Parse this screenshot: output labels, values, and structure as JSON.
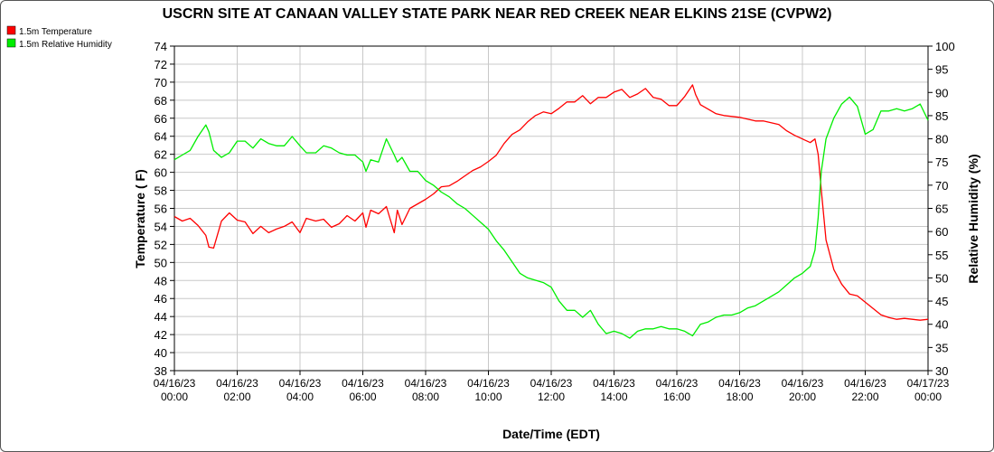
{
  "chart_data": {
    "type": "line",
    "title": "USCRN SITE AT CANAAN VALLEY STATE PARK NEAR RED CREEK NEAR ELKINS 21SE (CVPW2)",
    "xlabel": "Date/Time (EDT)",
    "ylabel_left": "Temperature ( F)",
    "ylabel_right": "Relative Humidity (%)",
    "xlim": [
      0,
      24
    ],
    "ylim_left": [
      38,
      74
    ],
    "ylim_right": [
      30,
      100
    ],
    "x_ticks": [
      {
        "x": 0,
        "date": "04/16/23",
        "time": "00:00"
      },
      {
        "x": 2,
        "date": "04/16/23",
        "time": "02:00"
      },
      {
        "x": 4,
        "date": "04/16/23",
        "time": "04:00"
      },
      {
        "x": 6,
        "date": "04/16/23",
        "time": "06:00"
      },
      {
        "x": 8,
        "date": "04/16/23",
        "time": "08:00"
      },
      {
        "x": 10,
        "date": "04/16/23",
        "time": "10:00"
      },
      {
        "x": 12,
        "date": "04/16/23",
        "time": "12:00"
      },
      {
        "x": 14,
        "date": "04/16/23",
        "time": "14:00"
      },
      {
        "x": 16,
        "date": "04/16/23",
        "time": "16:00"
      },
      {
        "x": 18,
        "date": "04/16/23",
        "time": "18:00"
      },
      {
        "x": 20,
        "date": "04/16/23",
        "time": "20:00"
      },
      {
        "x": 22,
        "date": "04/16/23",
        "time": "22:00"
      },
      {
        "x": 24,
        "date": "04/17/23",
        "time": "00:00"
      }
    ],
    "y_ticks_left": [
      38,
      40,
      42,
      44,
      46,
      48,
      50,
      52,
      54,
      56,
      58,
      60,
      62,
      64,
      66,
      68,
      70,
      72,
      74
    ],
    "y_ticks_right": [
      30,
      35,
      40,
      45,
      50,
      55,
      60,
      65,
      70,
      75,
      80,
      85,
      90,
      95,
      100
    ],
    "grid": true,
    "legend_position": "top-left",
    "series": [
      {
        "name": "1.5m Temperature",
        "color": "#ff0000",
        "axis": "left",
        "x": [
          0,
          0.25,
          0.5,
          0.75,
          1.0,
          1.1,
          1.25,
          1.5,
          1.75,
          2.0,
          2.25,
          2.5,
          2.75,
          3.0,
          3.25,
          3.5,
          3.75,
          4.0,
          4.2,
          4.5,
          4.75,
          5.0,
          5.25,
          5.5,
          5.75,
          6.0,
          6.1,
          6.25,
          6.5,
          6.75,
          7.0,
          7.1,
          7.25,
          7.5,
          7.75,
          8.0,
          8.25,
          8.5,
          8.75,
          9.0,
          9.25,
          9.5,
          9.75,
          10.0,
          10.25,
          10.5,
          10.75,
          11.0,
          11.25,
          11.5,
          11.75,
          12.0,
          12.25,
          12.5,
          12.75,
          13.0,
          13.25,
          13.5,
          13.75,
          14.0,
          14.25,
          14.5,
          14.75,
          15.0,
          15.25,
          15.5,
          15.75,
          16.0,
          16.25,
          16.5,
          16.6,
          16.75,
          17.0,
          17.25,
          17.5,
          17.75,
          18.0,
          18.25,
          18.5,
          18.75,
          19.0,
          19.25,
          19.5,
          19.75,
          20.0,
          20.25,
          20.4,
          20.5,
          20.6,
          20.75,
          21.0,
          21.25,
          21.5,
          21.75,
          22.0,
          22.25,
          22.5,
          22.75,
          23.0,
          23.25,
          23.5,
          23.75,
          24.0
        ],
        "values": [
          55.1,
          54.6,
          54.9,
          54.1,
          53.0,
          51.7,
          51.6,
          54.6,
          55.5,
          54.7,
          54.5,
          53.2,
          54.0,
          53.3,
          53.7,
          54.0,
          54.5,
          53.3,
          54.9,
          54.6,
          54.8,
          53.9,
          54.3,
          55.2,
          54.6,
          55.5,
          53.9,
          55.8,
          55.4,
          56.2,
          53.3,
          55.8,
          54.2,
          56.0,
          56.5,
          57.0,
          57.6,
          58.4,
          58.5,
          59.0,
          59.6,
          60.2,
          60.6,
          61.2,
          61.9,
          63.2,
          64.2,
          64.7,
          65.6,
          66.3,
          66.7,
          66.5,
          67.1,
          67.8,
          67.8,
          68.5,
          67.6,
          68.3,
          68.3,
          68.9,
          69.2,
          68.3,
          68.7,
          69.3,
          68.3,
          68.1,
          67.4,
          67.4,
          68.4,
          69.7,
          68.6,
          67.5,
          67.0,
          66.5,
          66.3,
          66.2,
          66.1,
          65.9,
          65.7,
          65.7,
          65.5,
          65.3,
          64.6,
          64.1,
          63.7,
          63.3,
          63.7,
          62.0,
          58.0,
          52.5,
          49.2,
          47.6,
          46.5,
          46.3,
          45.6,
          44.9,
          44.2,
          43.9,
          43.7,
          43.8,
          43.7,
          43.6,
          43.7
        ]
      },
      {
        "name": "1.5m Relative Humidity",
        "color": "#00ee00",
        "axis": "right",
        "x": [
          0,
          0.25,
          0.5,
          0.75,
          1.0,
          1.1,
          1.25,
          1.5,
          1.75,
          2.0,
          2.25,
          2.5,
          2.75,
          3.0,
          3.25,
          3.5,
          3.75,
          4.0,
          4.2,
          4.5,
          4.75,
          5.0,
          5.25,
          5.5,
          5.75,
          6.0,
          6.1,
          6.25,
          6.5,
          6.75,
          7.0,
          7.1,
          7.25,
          7.5,
          7.75,
          8.0,
          8.25,
          8.5,
          8.75,
          9.0,
          9.25,
          9.5,
          9.75,
          10.0,
          10.25,
          10.5,
          10.75,
          11.0,
          11.25,
          11.5,
          11.75,
          12.0,
          12.25,
          12.5,
          12.75,
          13.0,
          13.25,
          13.5,
          13.75,
          14.0,
          14.25,
          14.5,
          14.75,
          15.0,
          15.25,
          15.5,
          15.75,
          16.0,
          16.25,
          16.5,
          16.6,
          16.75,
          17.0,
          17.25,
          17.5,
          17.75,
          18.0,
          18.25,
          18.5,
          18.75,
          19.0,
          19.25,
          19.5,
          19.75,
          20.0,
          20.25,
          20.4,
          20.5,
          20.6,
          20.75,
          21.0,
          21.25,
          21.5,
          21.75,
          22.0,
          22.25,
          22.5,
          22.75,
          23.0,
          23.25,
          23.5,
          23.75,
          24.0
        ],
        "values": [
          75.5,
          76.5,
          77.5,
          80.5,
          83.0,
          81.5,
          77.5,
          76.0,
          77.0,
          79.5,
          79.5,
          78.0,
          80.0,
          79.0,
          78.5,
          78.5,
          80.5,
          78.5,
          77.0,
          77.0,
          78.5,
          78.0,
          77.0,
          76.5,
          76.5,
          75.0,
          73.0,
          75.5,
          75.0,
          80.0,
          76.5,
          75.0,
          76.0,
          73.0,
          73.0,
          71.0,
          70.0,
          68.5,
          67.5,
          66.0,
          65.0,
          63.5,
          62.0,
          60.5,
          58.0,
          56.0,
          53.5,
          51.0,
          50.0,
          49.5,
          49.0,
          48.0,
          45.0,
          43.0,
          43.0,
          41.5,
          43.0,
          40.0,
          38.0,
          38.5,
          38.0,
          37.0,
          38.5,
          39.0,
          39.0,
          39.5,
          39.0,
          39.0,
          38.5,
          37.5,
          38.5,
          40.0,
          40.5,
          41.5,
          42.0,
          42.0,
          42.5,
          43.5,
          44.0,
          45.0,
          46.0,
          47.0,
          48.5,
          50.0,
          51.0,
          52.5,
          56.0,
          63.0,
          73.0,
          80.0,
          84.5,
          87.5,
          89.0,
          87.0,
          81.0,
          82.0,
          86.0,
          86.0,
          86.5,
          86.0,
          86.5,
          87.5,
          84.0
        ]
      }
    ]
  }
}
